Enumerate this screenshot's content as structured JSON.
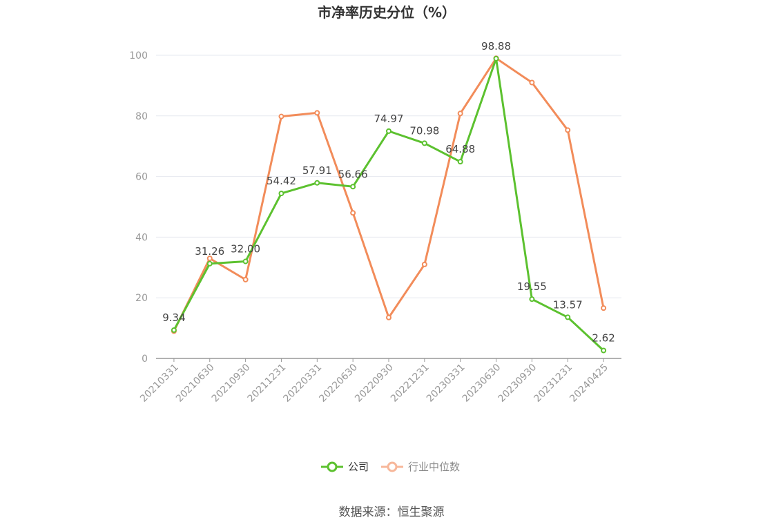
{
  "chart_data": {
    "type": "line",
    "title": "市净率历史分位（%）",
    "categories": [
      "20210331",
      "20210630",
      "20210930",
      "20211231",
      "20220331",
      "20220630",
      "20220930",
      "20221231",
      "20230331",
      "20230630",
      "20230930",
      "20231231",
      "20240425"
    ],
    "ylim": [
      0,
      100
    ],
    "yticks": [
      0,
      20,
      40,
      60,
      80,
      100
    ],
    "grid": true,
    "legend_position": "bottom",
    "series": [
      {
        "name": "公司",
        "color": "#5cc12f",
        "values": [
          9.34,
          31.26,
          32.0,
          54.42,
          57.91,
          56.66,
          74.97,
          70.98,
          64.88,
          98.88,
          19.55,
          13.57,
          2.62
        ],
        "labels": [
          "9.34",
          "31.26",
          "32.00",
          "54.42",
          "57.91",
          "56.66",
          "74.97",
          "70.98",
          "64.88",
          "98.88",
          "19.55",
          "13.57",
          "2.62"
        ]
      },
      {
        "name": "行业中位数",
        "color": "#f28c5a",
        "legend_color": "#f7b79a",
        "values": [
          9.0,
          33.0,
          26.0,
          79.8,
          81.0,
          48.0,
          13.5,
          31.0,
          80.8,
          99.0,
          91.0,
          75.3,
          16.6
        ]
      }
    ]
  },
  "source": "数据来源：恒生聚源"
}
